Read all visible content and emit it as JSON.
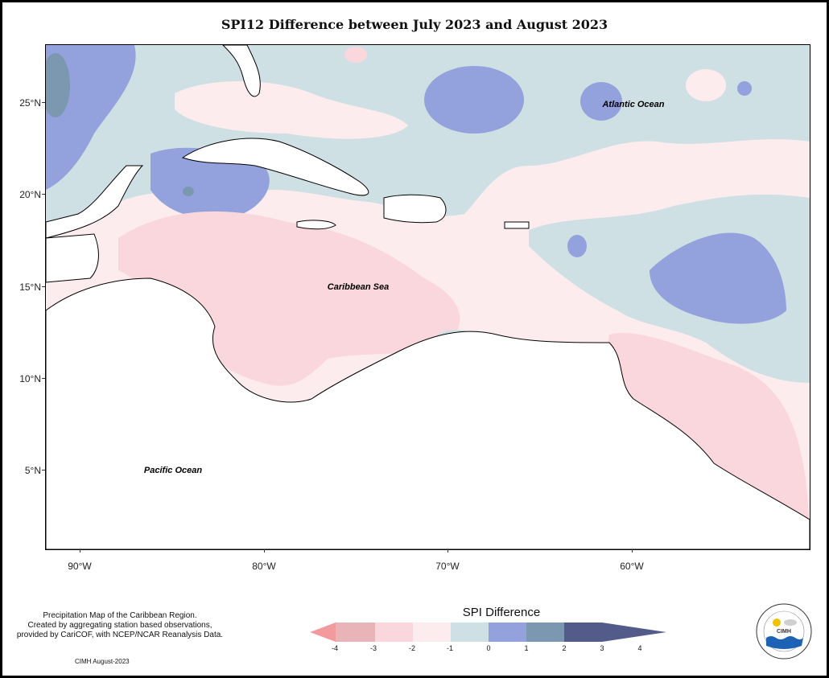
{
  "title": "SPI12 Difference between July 2023 and August 2023",
  "map": {
    "lat_ticks": [
      "25°N",
      "20°N",
      "15°N",
      "10°N",
      "5°N"
    ],
    "lon_ticks": [
      "90°W",
      "80°W",
      "70°W",
      "60°W"
    ],
    "labels": {
      "atlantic": "Atlantic Ocean",
      "caribbean": "Caribbean Sea",
      "pacific": "Pacific Ocean"
    }
  },
  "legend": {
    "title": "SPI Difference",
    "ticks": [
      "-4",
      "-3",
      "-2",
      "-1",
      "0",
      "1",
      "2",
      "3",
      "4"
    ],
    "colors": {
      "lt_-3": "#f29a9e",
      "-3_-2": "#e8b4b8",
      "-2_-1": "#fad7dc",
      "-1_0": "#fdeced",
      "0_1": "#cfe0e4",
      "1_2": "#93a2dc",
      "2_3": "#7c98b0",
      "gt_3": "#525b8a"
    }
  },
  "credit": {
    "line1": "Precipitation Map of the Caribbean Region.",
    "line2": "Created by aggregating station based observations,",
    "line3": "provided by CariCOF, with NCEP/NCAR Reanalysis Data.",
    "date": "CIMH August-2023"
  },
  "logo": {
    "text": "CIMH",
    "ring_text": "Caribbean Institute for Meteorology and Hydrology"
  }
}
